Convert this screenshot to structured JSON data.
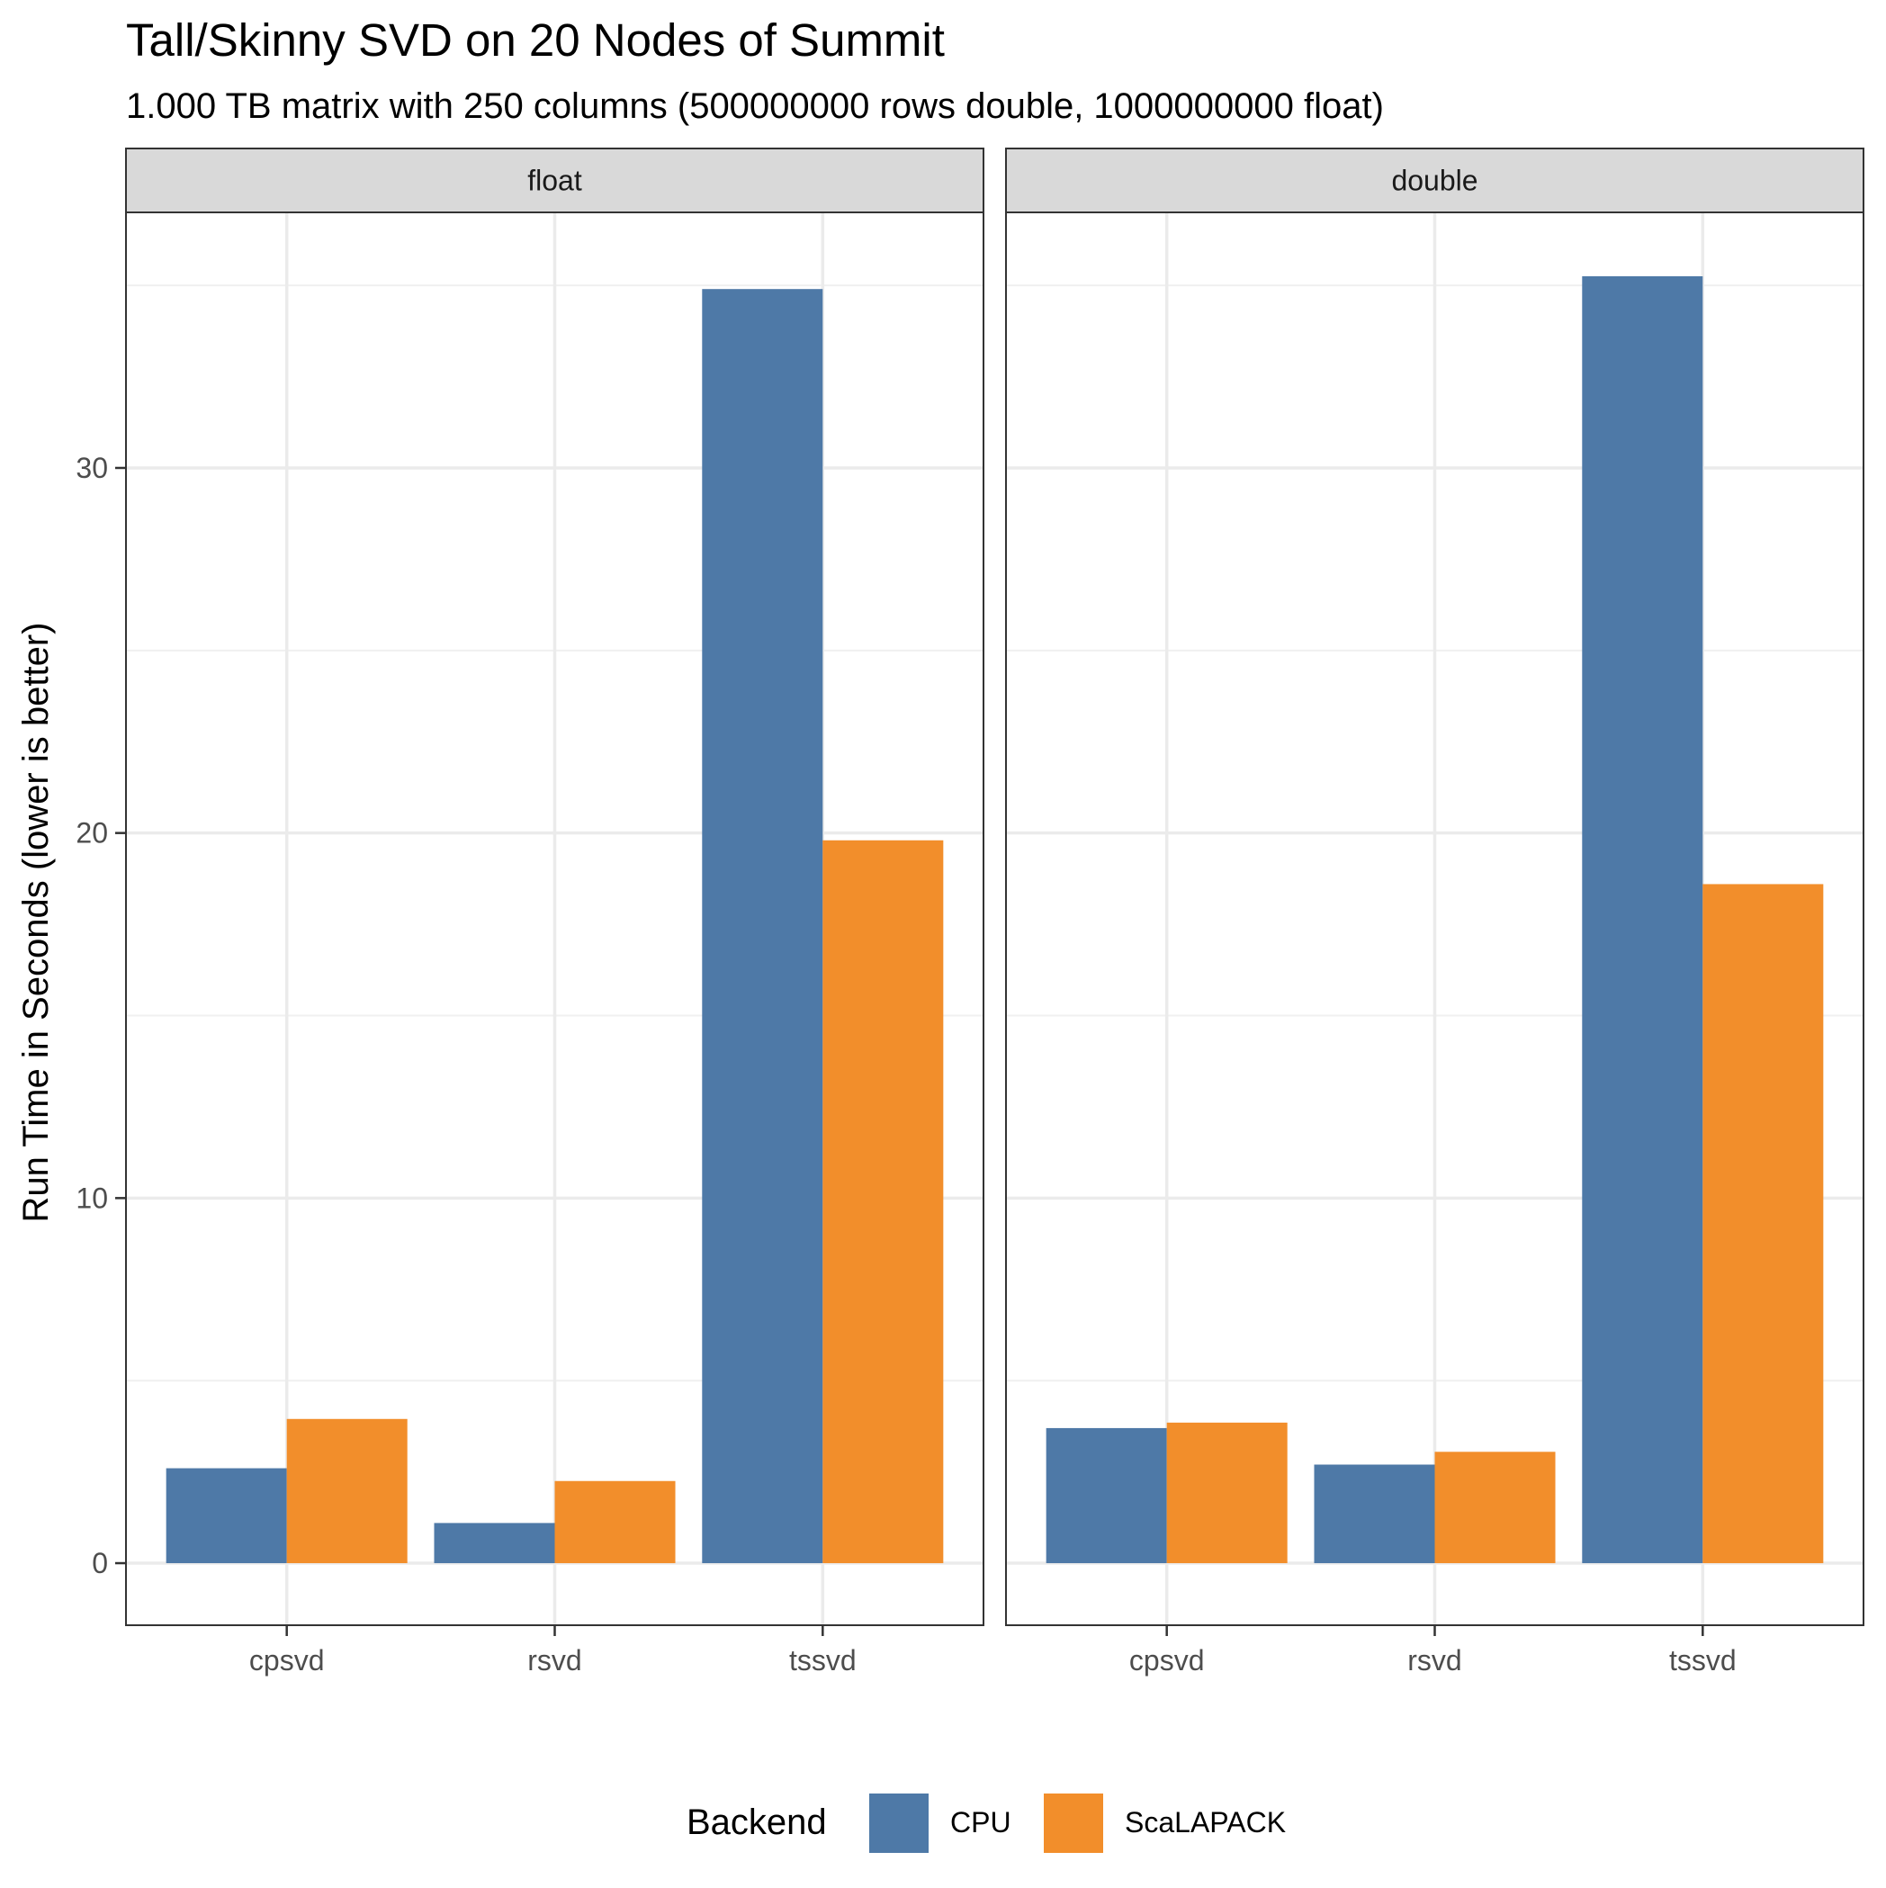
{
  "chart_data": {
    "type": "bar",
    "title": "Tall/Skinny SVD on 20 Nodes of Summit",
    "subtitle": "1.000 TB matrix with 250 columns (500000000 rows double, 1000000000 float)",
    "ylabel": "Run Time in Seconds (lower is better)",
    "xlabel": "",
    "ylim": [
      -1.7,
      37.0
    ],
    "yticks": [
      0,
      10,
      20,
      30
    ],
    "grid": true,
    "categories": [
      "cpsvd",
      "rsvd",
      "tssvd"
    ],
    "legend": {
      "title": "Backend",
      "position": "bottom"
    },
    "colors": {
      "CPU": "#4e79a7",
      "ScaLAPACK": "#f28e2b"
    },
    "facets": [
      {
        "label": "float",
        "series": [
          {
            "name": "CPU",
            "values": [
              2.6,
              1.1,
              34.9
            ]
          },
          {
            "name": "ScaLAPACK",
            "values": [
              3.95,
              2.25,
              19.8
            ]
          }
        ]
      },
      {
        "label": "double",
        "series": [
          {
            "name": "CPU",
            "values": [
              3.7,
              2.7,
              35.25
            ]
          },
          {
            "name": "ScaLAPACK",
            "values": [
              3.85,
              3.05,
              18.6
            ]
          }
        ]
      }
    ]
  }
}
